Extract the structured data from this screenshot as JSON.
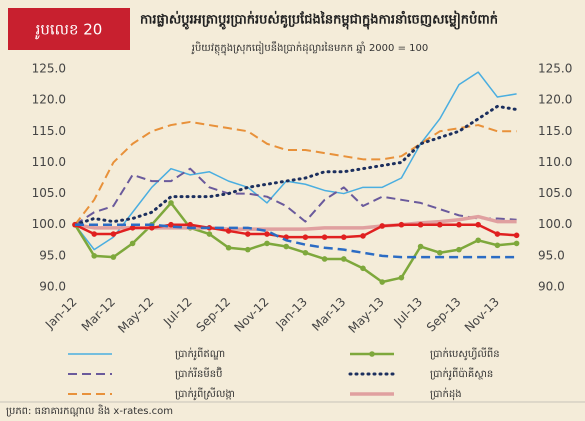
{
  "chart_data": {
    "type": "line",
    "figure_label": "រូបលេខ 20",
    "title": "ការផ្លាស់ប្តូរអត្រាប្តូរប្រាក់របស់គូប្រជែងនៃកម្ពុជាក្នុងការនាំចេញសម្លៀកបំពាក់",
    "subtitle": "រូបិយវត្ថុក្នុងស្រុកធៀបនឹងប្រាក់ដុល្លារនៃមកក ឆ្នាំ 2000 = 100",
    "source": "ប្រភព: ធនាគារកណ្តាល និង x-rates.com",
    "categories": [
      "Jan-12",
      null,
      "Mar-12",
      null,
      "May-12",
      null,
      "Jul-12",
      null,
      "Sep-12",
      null,
      "Nov-12",
      null,
      "Jan-13",
      null,
      "Mar-13",
      null,
      "May-13",
      null,
      "Jul-13",
      null,
      "Sep-13",
      null,
      "Nov-13",
      null
    ],
    "ylim": [
      90,
      125
    ],
    "yticks": [
      {
        "value": 90,
        "label": "90.0"
      },
      {
        "value": 95,
        "label": "95.0"
      },
      {
        "value": 100,
        "label": "100.0"
      },
      {
        "value": 105,
        "label": "105.0"
      },
      {
        "value": 110,
        "label": "110.0"
      },
      {
        "value": 115,
        "label": "115.0"
      },
      {
        "value": 120,
        "label": "120.0"
      },
      {
        "value": 125,
        "label": "125.0"
      }
    ],
    "y2lim": [
      90,
      125
    ],
    "y2ticks": [
      {
        "value": 90,
        "label": "90.0"
      },
      {
        "value": 95,
        "label": "95.0"
      },
      {
        "value": 100,
        "label": "100.0"
      },
      {
        "value": 105,
        "label": "105.0"
      },
      {
        "value": 110,
        "label": "110.0"
      },
      {
        "value": 115,
        "label": "115.0"
      },
      {
        "value": 120,
        "label": "120.0"
      },
      {
        "value": 125,
        "label": "125.0"
      }
    ],
    "series": [
      {
        "name": "ប្រាក់រូពីឥណ្ឌា",
        "color": "#4aaee0",
        "style": "solid",
        "width": 1.5,
        "values": [
          100,
          96,
          98,
          102,
          106,
          109,
          108,
          108.5,
          107,
          106,
          103.5,
          107,
          106.5,
          105.5,
          105,
          106,
          106,
          107.5,
          113,
          117,
          122.5,
          124.5,
          120.5,
          121
        ]
      },
      {
        "name": "ប្រាក់រីនមីនប៊ិ",
        "color": "#6a5a9c",
        "style": "dash",
        "width": 2,
        "values": [
          100,
          102,
          103,
          108,
          107,
          107,
          109,
          106,
          105,
          105,
          104.5,
          103,
          100.5,
          104,
          106,
          103,
          104.5,
          104,
          103.5,
          102.5,
          101.5,
          101,
          101,
          100.8
        ]
      },
      {
        "name": "ប្រាក់រូពីស្រីលង្កា",
        "color": "#e8913a",
        "style": "dash",
        "width": 2,
        "values": [
          100,
          104,
          110,
          113,
          115,
          116,
          116.5,
          116,
          115.5,
          115,
          113,
          112,
          112,
          111.5,
          111,
          110.5,
          110.5,
          111,
          113,
          115,
          115.5,
          116,
          115,
          115
        ]
      },
      {
        "name": "ប្រាក់បេសូហ្វីលីពីន",
        "color": "#7ea83c",
        "style": "solid",
        "width": 2.5,
        "marker": true,
        "values": [
          100,
          95,
          94.8,
          97,
          100,
          103.5,
          99.5,
          98.5,
          96.3,
          96,
          97,
          96.5,
          95.5,
          94.5,
          94.5,
          93,
          90.8,
          91.5,
          96.5,
          95.5,
          96,
          97.5,
          96.7,
          97
        ]
      },
      {
        "name": "ប្រាក់រូពីប៉ាគីស្ថាន",
        "color": "#1c2f5e",
        "style": "dot",
        "width": 3,
        "values": [
          100,
          101,
          100.5,
          101,
          102,
          104.5,
          104.5,
          104.5,
          105,
          106,
          106.5,
          107,
          107.5,
          108.5,
          108.5,
          109,
          109.5,
          110,
          113,
          114,
          115,
          117,
          119,
          118.5
        ]
      },
      {
        "name": "ប្រាក់ដុង",
        "color": "#e0a0a0",
        "style": "solid",
        "width": 3.5,
        "values": [
          100,
          99.5,
          99.5,
          99.5,
          99.5,
          99.5,
          99.5,
          99.5,
          99.3,
          99.3,
          99.3,
          99.3,
          99.3,
          99.5,
          99.5,
          99.5,
          99.8,
          100,
          100.3,
          100.5,
          100.8,
          101.3,
          100.5,
          100.5
        ]
      },
      {
        "color": "#e02020",
        "style": "solid",
        "width": 2.5,
        "marker": true,
        "values": [
          100,
          98.5,
          98.5,
          99.5,
          99.5,
          100,
          100,
          99.5,
          99,
          98.5,
          98.5,
          98,
          98,
          98,
          98,
          98.2,
          99.8,
          100,
          100,
          100,
          100,
          100,
          98.5,
          98.3
        ]
      },
      {
        "color": "#2b6cc4",
        "style": "dash",
        "width": 2.5,
        "values": [
          100,
          100,
          100,
          100,
          100,
          99.7,
          99.5,
          99.5,
          99.5,
          99.5,
          99,
          97.5,
          96.8,
          96.3,
          96,
          95.5,
          95,
          94.8,
          94.8,
          94.8,
          94.8,
          94.8,
          94.8,
          94.8
        ]
      }
    ]
  }
}
